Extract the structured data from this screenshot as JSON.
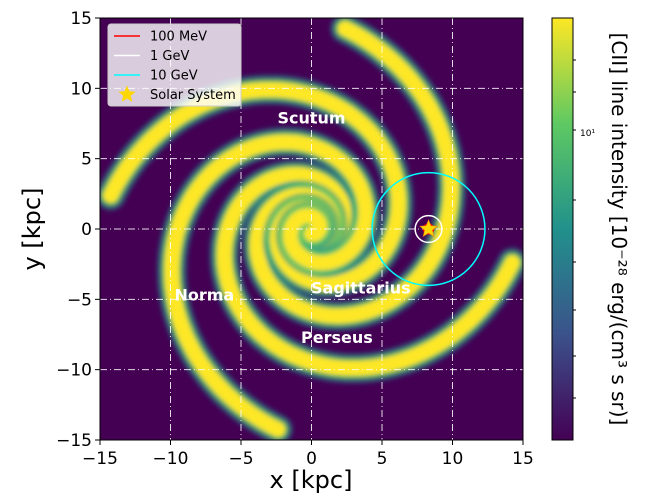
{
  "chart_data": {
    "type": "heatmap",
    "xlabel": "x [kpc]",
    "ylabel": "y [kpc]",
    "xlim": [
      -15,
      15
    ],
    "ylim": [
      -15,
      15
    ],
    "x_ticks": [
      -15,
      -10,
      -5,
      0,
      5,
      10,
      15
    ],
    "y_ticks": [
      -15,
      -10,
      -5,
      0,
      5,
      10,
      15
    ],
    "x_tick_labels": [
      "−15",
      "−10",
      "−5",
      "0",
      "5",
      "10",
      "15"
    ],
    "y_tick_labels": [
      "−15",
      "−10",
      "−5",
      "0",
      "5",
      "10",
      "15"
    ],
    "grid": true,
    "colormap": [
      "#440154",
      "#3b528b",
      "#21918c",
      "#5ec962",
      "#fde725"
    ],
    "background_color": "#440154",
    "arm_color": "#fde725",
    "colorbar": {
      "label": "[CII] line intensity [10⁻²⁸ erg/(cm³ s sr)]",
      "scale": "log",
      "tick_label": "10¹"
    },
    "arm_labels": [
      {
        "text": "Scutum",
        "x": 0,
        "y": 7.5
      },
      {
        "text": "Sagittarius",
        "x": 3.5,
        "y": -4.6
      },
      {
        "text": "Norma",
        "x": -7.6,
        "y": -5.1
      },
      {
        "text": "Perseus",
        "x": 1.8,
        "y": -8.1
      }
    ],
    "legend": {
      "placement": "top-left",
      "entries": [
        {
          "label": "100 MeV",
          "color": "#ff0000",
          "marker": "line"
        },
        {
          "label": "1 GeV",
          "color": "#ffffff",
          "marker": "line"
        },
        {
          "label": "10 GeV",
          "color": "#00ffff",
          "marker": "line"
        },
        {
          "label": "Solar System",
          "color": "#ffd700",
          "marker": "star"
        }
      ]
    },
    "solar_system": {
      "x": 8.3,
      "y": 0.0
    },
    "circles": [
      {
        "label": "100 MeV",
        "center_x": 8.3,
        "center_y": 0.0,
        "radius": 0.35,
        "color": "#ff0000"
      },
      {
        "label": "1 GeV",
        "center_x": 8.3,
        "center_y": 0.0,
        "radius": 0.95,
        "color": "#ffffff"
      },
      {
        "label": "10 GeV",
        "center_x": 8.3,
        "center_y": 0.0,
        "radius": 4.0,
        "color": "#00ffff"
      }
    ]
  }
}
